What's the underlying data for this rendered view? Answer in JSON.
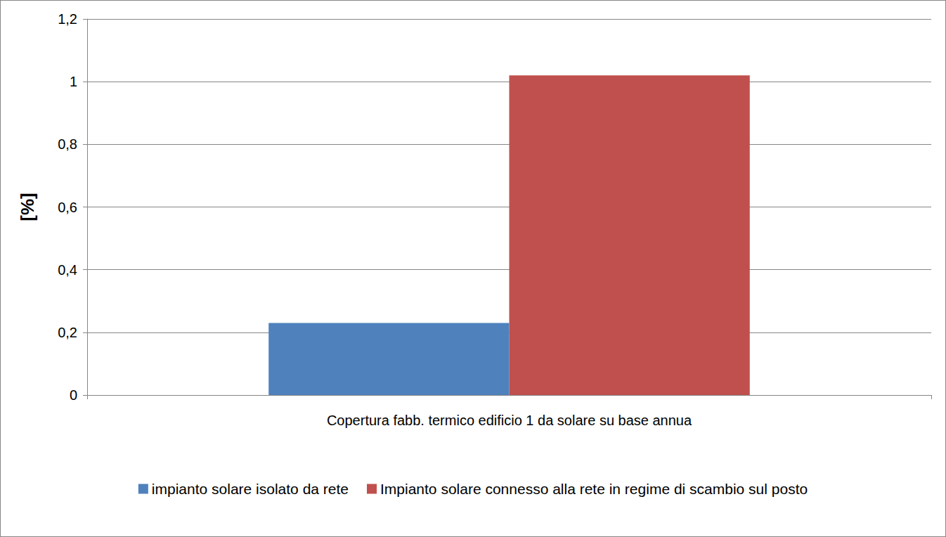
{
  "chart_data": {
    "type": "bar",
    "categories": [
      "Copertura fabb. termico edificio 1 da solare su base annua"
    ],
    "y_label": "[%]",
    "series": [
      {
        "name": "impianto solare isolato da rete",
        "color": "#4f81bd",
        "values": [
          0.23
        ]
      },
      {
        "name": "Impianto solare connesso alla rete in regime di scambio sul posto",
        "color": "#c0504d",
        "values": [
          1.02
        ]
      }
    ],
    "ylim": [
      0,
      1.2
    ],
    "yticks": [
      0,
      {
        "value": 0.2,
        "label": "0,2"
      },
      {
        "value": 0.4,
        "label": "0,4"
      },
      {
        "value": 0.6,
        "label": "0,6"
      },
      {
        "value": 0.8,
        "label": "0,8"
      },
      1,
      {
        "value": 1.2,
        "label": "1,2"
      }
    ],
    "grid": true,
    "legend": "bottom"
  }
}
